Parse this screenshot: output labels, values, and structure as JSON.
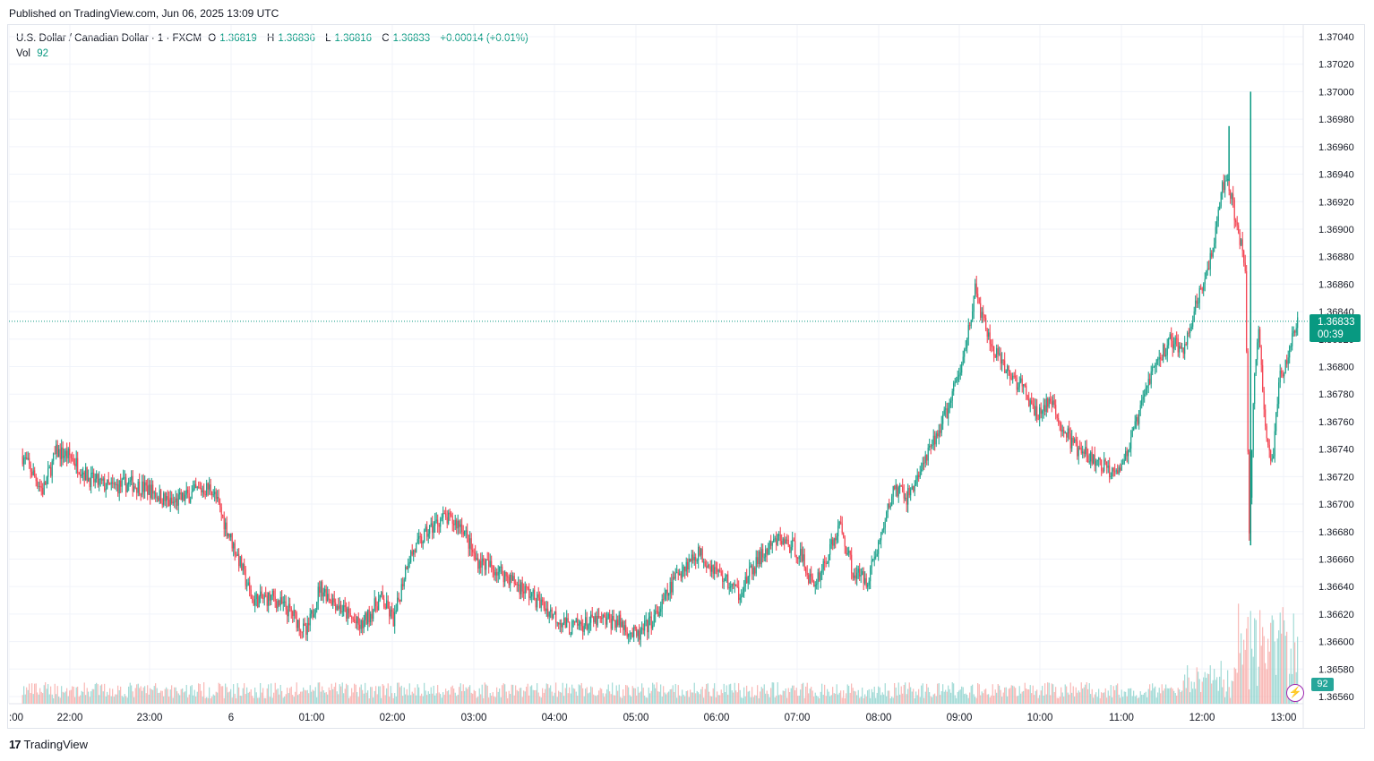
{
  "published": "Published on TradingView.com, Jun 06, 2025 13:09 UTC",
  "footer": {
    "brand": "TradingView",
    "logo": "17"
  },
  "legend": {
    "symbol": "U.S. Dollar / Canadian Dollar · 1 · FXCM",
    "open_label": "O",
    "open": "1.36819",
    "high_label": "H",
    "high": "1.36836",
    "low_label": "L",
    "low": "1.36816",
    "close_label": "C",
    "close": "1.36833",
    "change": "+0.00014 (+0.01%)",
    "vol_label": "Vol",
    "vol": "92"
  },
  "last_price": {
    "price": "1.36833",
    "countdown": "00:39"
  },
  "vol_badge": "92",
  "colors": {
    "up": "#089981",
    "down": "#f23645",
    "vol_up": "#8fd3cd",
    "vol_down": "#f7a9a7",
    "grid": "#f0f3fa"
  },
  "chart_data": {
    "type": "candlestick",
    "y_axis": {
      "range": [
        1.3655,
        1.3705
      ],
      "ticks": [
        "1.37040",
        "1.37020",
        "1.37000",
        "1.36980",
        "1.36960",
        "1.36940",
        "1.36920",
        "1.36900",
        "1.36880",
        "1.36860",
        "1.36840",
        "1.36820",
        "1.36800",
        "1.36780",
        "1.36760",
        "1.36740",
        "1.36720",
        "1.36700",
        "1.36680",
        "1.36660",
        "1.36640",
        "1.36620",
        "1.36600",
        "1.36580",
        "1.36560"
      ]
    },
    "x_axis": {
      "ticks": [
        ":00",
        "22:00",
        "23:00",
        "6",
        "01:00",
        "02:00",
        "03:00",
        "04:00",
        "05:00",
        "06:00",
        "07:00",
        "08:00",
        "09:00",
        "10:00",
        "11:00",
        "12:00",
        "13:00"
      ]
    },
    "last_close": 1.36833,
    "path_points": [
      {
        "t": "21:25",
        "price": 1.36735
      },
      {
        "t": "21:40",
        "price": 1.3671
      },
      {
        "t": "21:50",
        "price": 1.36738
      },
      {
        "t": "22:00",
        "price": 1.36735
      },
      {
        "t": "22:15",
        "price": 1.36718
      },
      {
        "t": "22:30",
        "price": 1.36712
      },
      {
        "t": "22:45",
        "price": 1.36715
      },
      {
        "t": "23:00",
        "price": 1.3671
      },
      {
        "t": "23:15",
        "price": 1.367
      },
      {
        "t": "23:35",
        "price": 1.3671
      },
      {
        "t": "23:45",
        "price": 1.36712
      },
      {
        "t": "23:55",
        "price": 1.36685
      },
      {
        "t": "00:05",
        "price": 1.3666
      },
      {
        "t": "00:15",
        "price": 1.3663
      },
      {
        "t": "00:30",
        "price": 1.36632
      },
      {
        "t": "00:45",
        "price": 1.3662
      },
      {
        "t": "00:55",
        "price": 1.36605
      },
      {
        "t": "01:05",
        "price": 1.3664
      },
      {
        "t": "01:20",
        "price": 1.36625
      },
      {
        "t": "01:35",
        "price": 1.3661
      },
      {
        "t": "01:50",
        "price": 1.36632
      },
      {
        "t": "02:00",
        "price": 1.36615
      },
      {
        "t": "02:10",
        "price": 1.3666
      },
      {
        "t": "02:25",
        "price": 1.3668
      },
      {
        "t": "02:35",
        "price": 1.3669
      },
      {
        "t": "02:50",
        "price": 1.36685
      },
      {
        "t": "03:00",
        "price": 1.3666
      },
      {
        "t": "03:20",
        "price": 1.3665
      },
      {
        "t": "03:40",
        "price": 1.36635
      },
      {
        "t": "03:55",
        "price": 1.36622
      },
      {
        "t": "04:10",
        "price": 1.3661
      },
      {
        "t": "04:30",
        "price": 1.36615
      },
      {
        "t": "04:45",
        "price": 1.36615
      },
      {
        "t": "05:00",
        "price": 1.36603
      },
      {
        "t": "05:15",
        "price": 1.3662
      },
      {
        "t": "05:30",
        "price": 1.3665
      },
      {
        "t": "05:45",
        "price": 1.36665
      },
      {
        "t": "06:00",
        "price": 1.3665
      },
      {
        "t": "06:15",
        "price": 1.36635
      },
      {
        "t": "06:30",
        "price": 1.3666
      },
      {
        "t": "06:45",
        "price": 1.36675
      },
      {
        "t": "07:00",
        "price": 1.36665
      },
      {
        "t": "07:10",
        "price": 1.3664
      },
      {
        "t": "07:20",
        "price": 1.3666
      },
      {
        "t": "07:30",
        "price": 1.36685
      },
      {
        "t": "07:40",
        "price": 1.3665
      },
      {
        "t": "07:50",
        "price": 1.36645
      },
      {
        "t": "08:00",
        "price": 1.36675
      },
      {
        "t": "08:10",
        "price": 1.36712
      },
      {
        "t": "08:20",
        "price": 1.36705
      },
      {
        "t": "08:35",
        "price": 1.36735
      },
      {
        "t": "08:50",
        "price": 1.3677
      },
      {
        "t": "09:00",
        "price": 1.368
      },
      {
        "t": "09:10",
        "price": 1.36855
      },
      {
        "t": "09:20",
        "price": 1.3682
      },
      {
        "t": "09:30",
        "price": 1.368
      },
      {
        "t": "09:45",
        "price": 1.36785
      },
      {
        "t": "09:55",
        "price": 1.36765
      },
      {
        "t": "10:05",
        "price": 1.36775
      },
      {
        "t": "10:15",
        "price": 1.36755
      },
      {
        "t": "10:25",
        "price": 1.3674
      },
      {
        "t": "10:40",
        "price": 1.3673
      },
      {
        "t": "10:50",
        "price": 1.36725
      },
      {
        "t": "11:00",
        "price": 1.3673
      },
      {
        "t": "11:10",
        "price": 1.3676
      },
      {
        "t": "11:20",
        "price": 1.36795
      },
      {
        "t": "11:35",
        "price": 1.3682
      },
      {
        "t": "11:45",
        "price": 1.3681
      },
      {
        "t": "11:55",
        "price": 1.3685
      },
      {
        "t": "12:05",
        "price": 1.3688
      },
      {
        "t": "12:15",
        "price": 1.3694
      },
      {
        "t": "12:20",
        "price": 1.3692
      },
      {
        "t": "12:25",
        "price": 1.369
      },
      {
        "t": "12:30",
        "price": 1.3687
      },
      {
        "t": "12:33",
        "price": 1.3667
      },
      {
        "t": "12:36",
        "price": 1.3678
      },
      {
        "t": "12:40",
        "price": 1.3683
      },
      {
        "t": "12:45",
        "price": 1.3675
      },
      {
        "t": "12:50",
        "price": 1.3673
      },
      {
        "t": "12:55",
        "price": 1.3679
      },
      {
        "t": "13:00",
        "price": 1.368
      },
      {
        "t": "13:05",
        "price": 1.36825
      },
      {
        "t": "13:09",
        "price": 1.36833
      }
    ],
    "special_wicks": [
      {
        "t": "12:34",
        "high": 1.37,
        "low": 1.3667
      },
      {
        "t": "12:18",
        "high": 1.36975,
        "low": 1.36935
      }
    ],
    "volume": {
      "last": 92
    }
  }
}
